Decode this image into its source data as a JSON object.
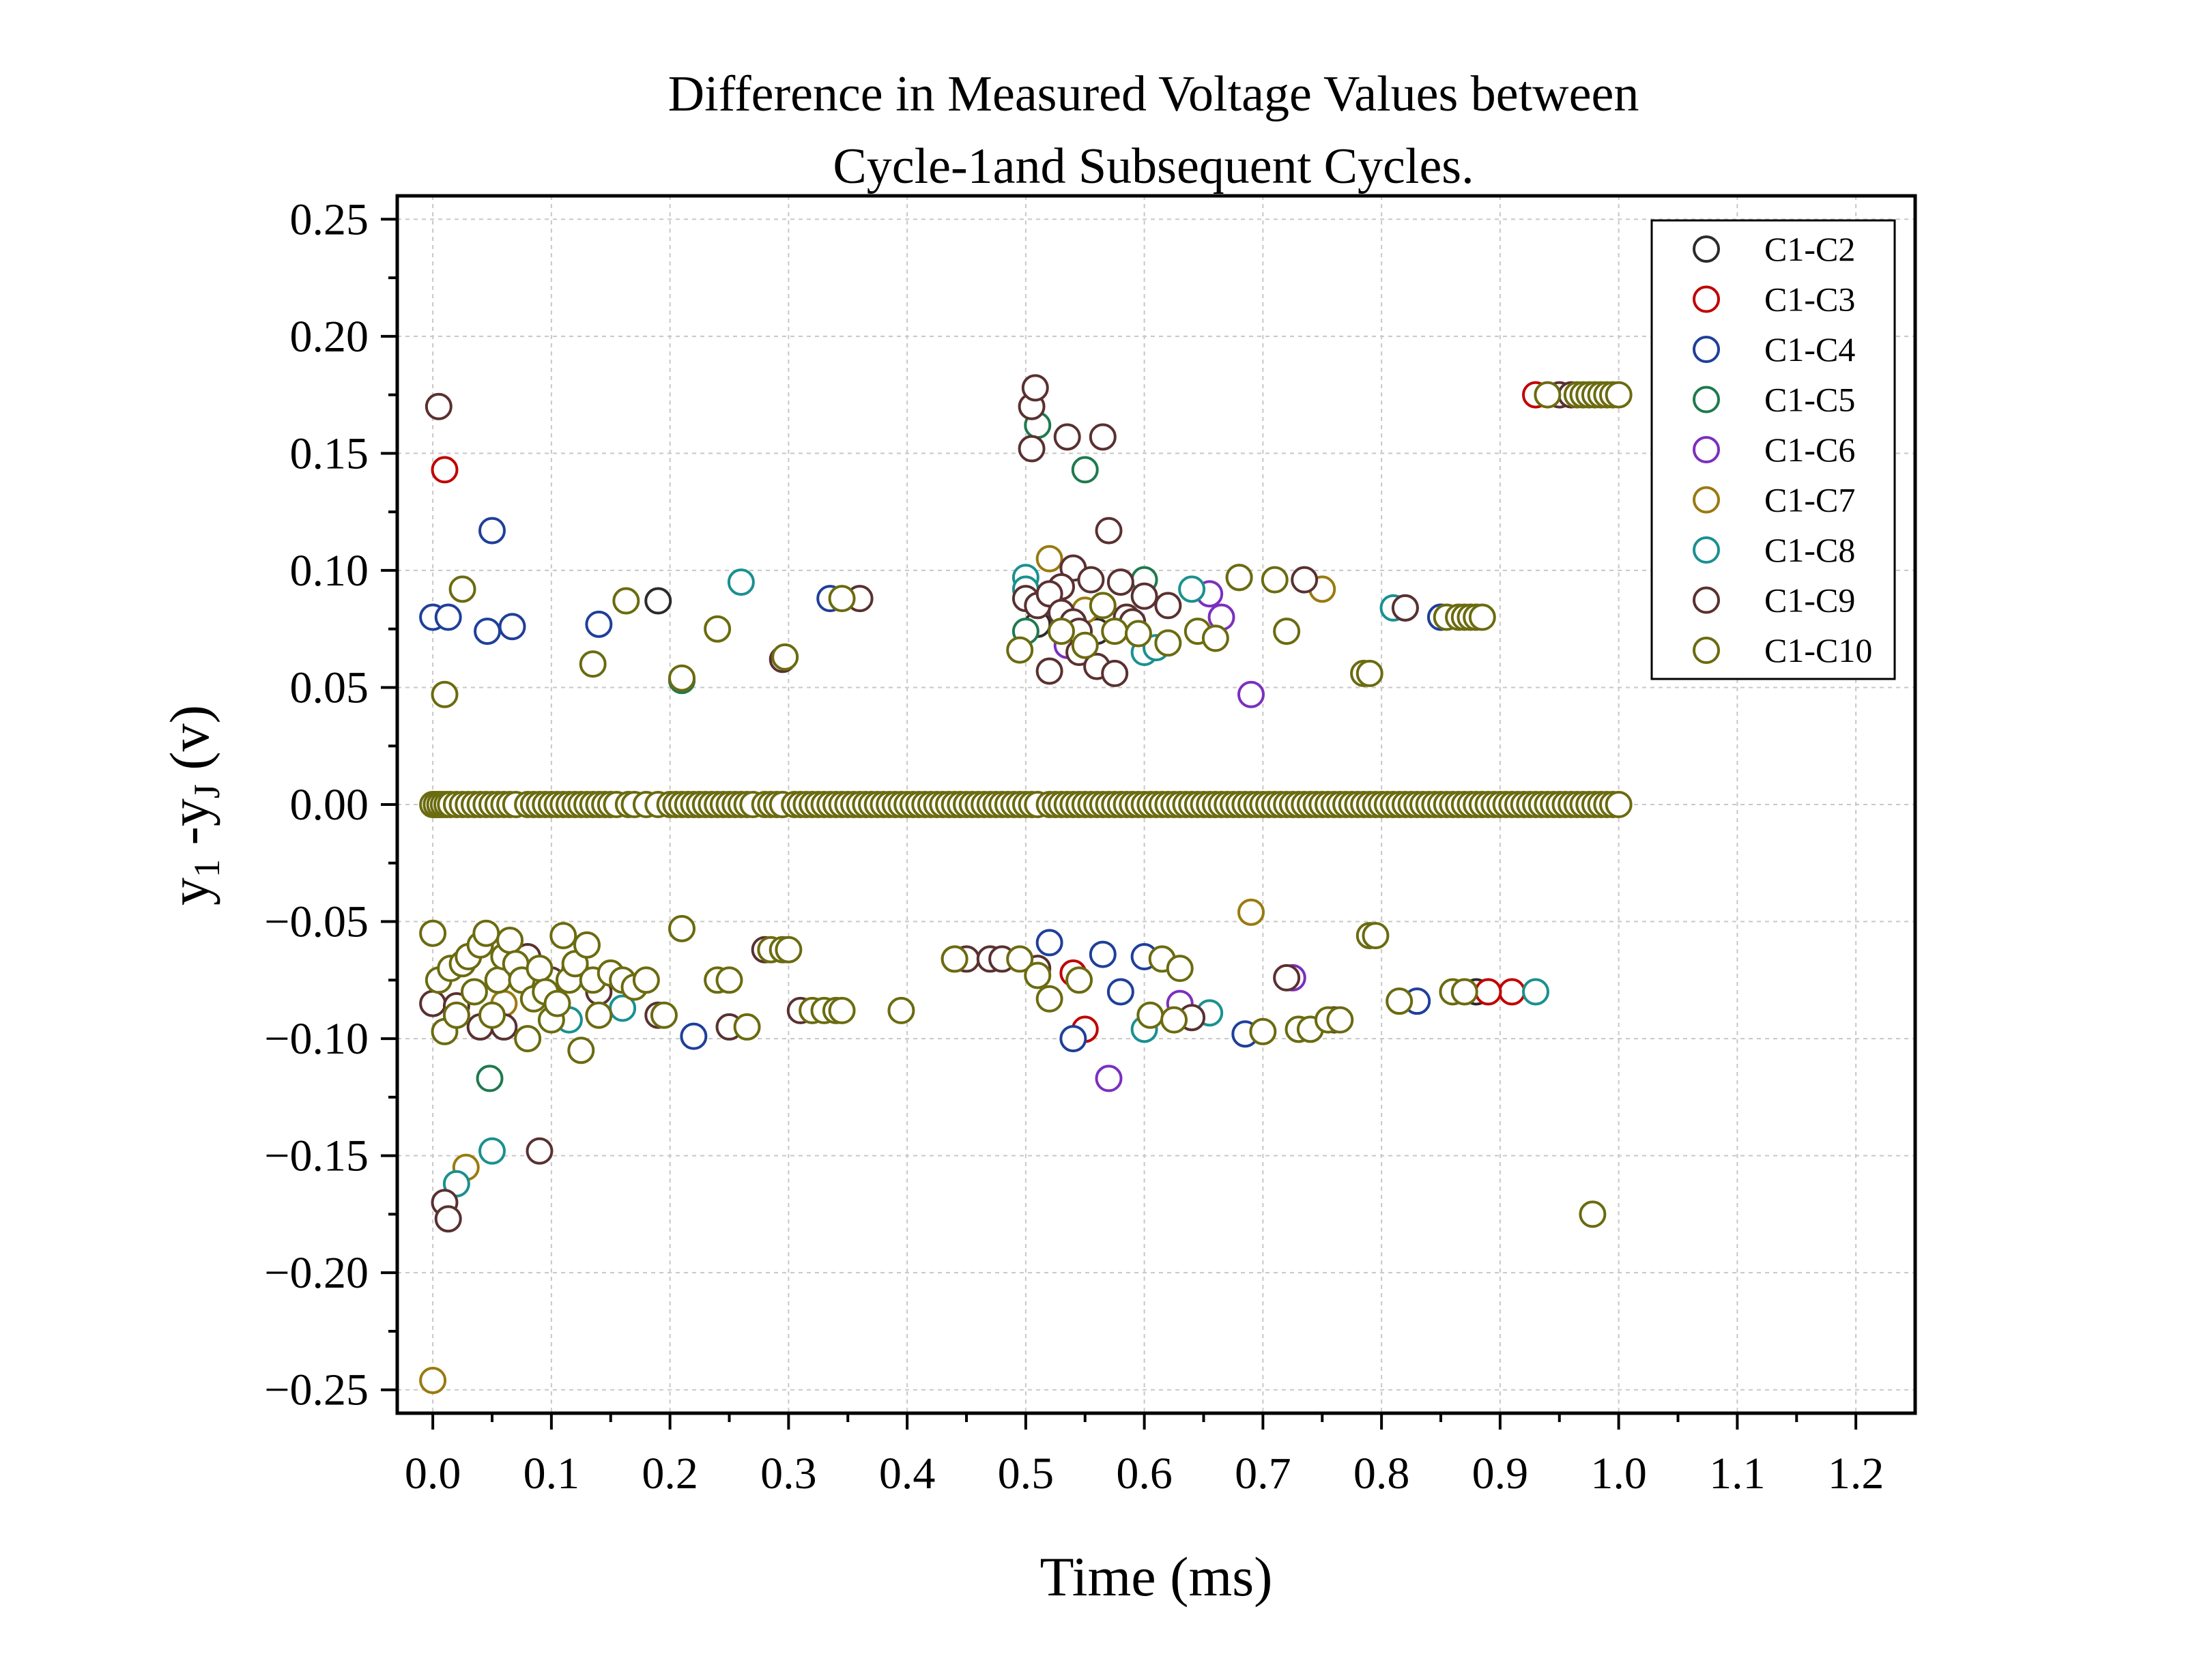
{
  "chart_data": {
    "type": "scatter",
    "title_line1": "Difference in Measured Voltage Values between",
    "title_line2": "Cycle-1and Subsequent Cycles.",
    "xlabel": "Time (ms)",
    "ylabel_main": "y",
    "ylabel_sub1": "1",
    "ylabel_mid": " -y",
    "ylabel_sub2": "J",
    "ylabel_unit": " (v)",
    "xlim": [
      -0.03,
      1.25
    ],
    "ylim": [
      -0.26,
      0.26
    ],
    "x_ticks": [
      0.0,
      0.1,
      0.2,
      0.3,
      0.4,
      0.5,
      0.6,
      0.7,
      0.8,
      0.9,
      1.0,
      1.1,
      1.2
    ],
    "x_tick_labels": [
      "0.0",
      "0.1",
      "0.2",
      "0.3",
      "0.4",
      "0.5",
      "0.6",
      "0.7",
      "0.8",
      "0.9",
      "1.0",
      "1.1",
      "1.2"
    ],
    "y_ticks": [
      -0.25,
      -0.2,
      -0.15,
      -0.1,
      -0.05,
      0.0,
      0.05,
      0.1,
      0.15,
      0.2,
      0.25
    ],
    "y_tick_labels": [
      "−0.25",
      "−0.20",
      "−0.15",
      "−0.10",
      "−0.05",
      "0.00",
      "0.05",
      "0.10",
      "0.15",
      "0.20",
      "0.25"
    ],
    "grid": true,
    "legend_position": "top-right",
    "series": [
      {
        "name": "C1-C2",
        "color": "#2b2b2b",
        "points": [
          [
            0.19,
            0.087
          ],
          [
            0.51,
            0.077
          ],
          [
            0.56,
            0.074
          ],
          [
            0.85,
            0.08
          ],
          [
            0.88,
            -0.08
          ],
          [
            0.21,
            0.053
          ]
        ]
      },
      {
        "name": "C1-C3",
        "color": "#c00000",
        "points": [
          [
            0.01,
            0.143
          ],
          [
            0.55,
            -0.096
          ],
          [
            0.54,
            -0.072
          ],
          [
            0.93,
            0.175
          ],
          [
            0.91,
            -0.08
          ],
          [
            0.89,
            -0.08
          ]
        ]
      },
      {
        "name": "C1-C4",
        "color": "#1f3f99",
        "points": [
          [
            0.0,
            0.08
          ],
          [
            0.013,
            0.08
          ],
          [
            0.05,
            0.117
          ],
          [
            0.046,
            0.074
          ],
          [
            0.067,
            0.076
          ],
          [
            0.14,
            0.077
          ],
          [
            0.335,
            0.088
          ],
          [
            0.52,
            -0.059
          ],
          [
            0.54,
            -0.1
          ],
          [
            0.565,
            -0.064
          ],
          [
            0.58,
            -0.08
          ],
          [
            0.6,
            -0.065
          ],
          [
            0.685,
            -0.098
          ],
          [
            0.22,
            -0.099
          ],
          [
            0.82,
            0.084
          ],
          [
            0.83,
            -0.084
          ],
          [
            0.85,
            0.08
          ]
        ]
      },
      {
        "name": "C1-C5",
        "color": "#1e7a4e",
        "points": [
          [
            0.048,
            -0.117
          ],
          [
            0.51,
            0.162
          ],
          [
            0.55,
            0.143
          ],
          [
            0.6,
            0.096
          ],
          [
            0.68,
            0.097
          ],
          [
            0.21,
            0.053
          ],
          [
            0.03,
            -0.065
          ],
          [
            0.5,
            0.074
          ]
        ]
      },
      {
        "name": "C1-C6",
        "color": "#7b2fbf",
        "points": [
          [
            0.57,
            -0.117
          ],
          [
            0.63,
            -0.085
          ],
          [
            0.665,
            0.08
          ],
          [
            0.655,
            0.09
          ],
          [
            0.69,
            0.047
          ],
          [
            0.725,
            -0.074
          ],
          [
            0.535,
            0.068
          ]
        ]
      },
      {
        "name": "C1-C7",
        "color": "#9a7a10",
        "points": [
          [
            0.0,
            -0.246
          ],
          [
            0.028,
            -0.155
          ],
          [
            0.69,
            -0.046
          ],
          [
            0.52,
            0.105
          ],
          [
            0.75,
            0.092
          ],
          [
            0.44,
            -0.066
          ],
          [
            0.02,
            -0.09
          ],
          [
            0.06,
            -0.085
          ],
          [
            0.55,
            0.083
          ]
        ]
      },
      {
        "name": "C1-C8",
        "color": "#1a9090",
        "points": [
          [
            0.05,
            -0.148
          ],
          [
            0.02,
            -0.162
          ],
          [
            0.26,
            0.095
          ],
          [
            0.5,
            0.097
          ],
          [
            0.64,
            0.092
          ],
          [
            0.655,
            -0.089
          ],
          [
            0.6,
            -0.096
          ],
          [
            0.6,
            0.065
          ],
          [
            0.61,
            0.067
          ],
          [
            0.81,
            0.084
          ],
          [
            0.93,
            -0.08
          ],
          [
            0.115,
            -0.092
          ],
          [
            0.16,
            -0.087
          ],
          [
            0.5,
            0.092
          ]
        ]
      },
      {
        "name": "C1-C9",
        "color": "#5a3030",
        "points": [
          [
            0.005,
            0.17
          ],
          [
            0.505,
            0.17
          ],
          [
            0.508,
            0.178
          ],
          [
            0.505,
            0.152
          ],
          [
            0.535,
            0.157
          ],
          [
            0.565,
            0.157
          ],
          [
            0.57,
            0.117
          ],
          [
            0.54,
            0.101
          ],
          [
            0.58,
            0.095
          ],
          [
            0.53,
            0.093
          ],
          [
            0.555,
            0.096
          ],
          [
            0.585,
            0.08
          ],
          [
            0.59,
            0.078
          ],
          [
            0.52,
            0.057
          ],
          [
            0.545,
            0.065
          ],
          [
            0.56,
            0.059
          ],
          [
            0.575,
            0.056
          ],
          [
            0.01,
            -0.17
          ],
          [
            0.013,
            -0.177
          ],
          [
            0.09,
            -0.148
          ],
          [
            0.36,
            0.088
          ],
          [
            0.295,
            0.062
          ],
          [
            0.5,
            0.088
          ],
          [
            0.51,
            0.085
          ],
          [
            0.52,
            0.09
          ],
          [
            0.53,
            0.082
          ],
          [
            0.54,
            0.078
          ],
          [
            0.545,
            0.074
          ],
          [
            0.62,
            0.085
          ],
          [
            0.6,
            0.089
          ],
          [
            0.735,
            0.096
          ],
          [
            0.95,
            0.175
          ],
          [
            0.96,
            0.175
          ],
          [
            0.45,
            -0.066
          ],
          [
            0.47,
            -0.066
          ],
          [
            0.48,
            -0.066
          ],
          [
            0.51,
            -0.07
          ],
          [
            0.0,
            -0.085
          ],
          [
            0.02,
            -0.086
          ],
          [
            0.04,
            -0.095
          ],
          [
            0.06,
            -0.095
          ],
          [
            0.08,
            -0.065
          ],
          [
            0.1,
            -0.075
          ],
          [
            0.12,
            -0.07
          ],
          [
            0.14,
            -0.08
          ],
          [
            0.19,
            -0.09
          ],
          [
            0.25,
            -0.095
          ],
          [
            0.28,
            -0.062
          ],
          [
            0.31,
            -0.088
          ],
          [
            0.72,
            -0.074
          ],
          [
            0.76,
            -0.092
          ],
          [
            0.64,
            -0.091
          ],
          [
            0.82,
            0.084
          ]
        ]
      },
      {
        "name": "C1-C10",
        "color": "#6b6b10",
        "points": [
          [
            0.01,
            0.047
          ],
          [
            0.025,
            0.092
          ],
          [
            0.135,
            0.06
          ],
          [
            0.163,
            0.087
          ],
          [
            0.21,
            0.054
          ],
          [
            0.24,
            0.075
          ],
          [
            0.345,
            0.088
          ],
          [
            0.297,
            0.063
          ],
          [
            0.495,
            0.066
          ],
          [
            0.53,
            0.074
          ],
          [
            0.55,
            0.068
          ],
          [
            0.565,
            0.085
          ],
          [
            0.575,
            0.074
          ],
          [
            0.595,
            0.073
          ],
          [
            0.62,
            0.069
          ],
          [
            0.645,
            0.074
          ],
          [
            0.66,
            0.071
          ],
          [
            0.68,
            0.097
          ],
          [
            0.71,
            0.096
          ],
          [
            0.72,
            0.074
          ],
          [
            0.785,
            0.056
          ],
          [
            0.79,
            0.056
          ],
          [
            0.855,
            0.08
          ],
          [
            0.865,
            0.08
          ],
          [
            0.87,
            0.08
          ],
          [
            0.875,
            0.08
          ],
          [
            0.88,
            0.08
          ],
          [
            0.885,
            0.08
          ],
          [
            0.94,
            0.175
          ],
          [
            0.965,
            0.175
          ],
          [
            0.97,
            0.175
          ],
          [
            0.975,
            0.175
          ],
          [
            0.98,
            0.175
          ],
          [
            0.985,
            0.175
          ],
          [
            0.99,
            0.175
          ],
          [
            0.995,
            0.175
          ],
          [
            1.0,
            0.175
          ],
          [
            0.978,
            -0.175
          ],
          [
            0.0,
            -0.055
          ],
          [
            0.005,
            -0.075
          ],
          [
            0.01,
            -0.097
          ],
          [
            0.015,
            -0.07
          ],
          [
            0.02,
            -0.09
          ],
          [
            0.025,
            -0.068
          ],
          [
            0.03,
            -0.065
          ],
          [
            0.035,
            -0.08
          ],
          [
            0.04,
            -0.06
          ],
          [
            0.045,
            -0.055
          ],
          [
            0.05,
            -0.09
          ],
          [
            0.055,
            -0.075
          ],
          [
            0.06,
            -0.065
          ],
          [
            0.065,
            -0.058
          ],
          [
            0.07,
            -0.068
          ],
          [
            0.075,
            -0.075
          ],
          [
            0.08,
            -0.1
          ],
          [
            0.085,
            -0.083
          ],
          [
            0.09,
            -0.07
          ],
          [
            0.095,
            -0.08
          ],
          [
            0.1,
            -0.092
          ],
          [
            0.105,
            -0.085
          ],
          [
            0.11,
            -0.056
          ],
          [
            0.115,
            -0.075
          ],
          [
            0.12,
            -0.068
          ],
          [
            0.125,
            -0.105
          ],
          [
            0.13,
            -0.06
          ],
          [
            0.135,
            -0.075
          ],
          [
            0.14,
            -0.09
          ],
          [
            0.15,
            -0.072
          ],
          [
            0.16,
            -0.075
          ],
          [
            0.17,
            -0.078
          ],
          [
            0.18,
            -0.075
          ],
          [
            0.195,
            -0.09
          ],
          [
            0.21,
            -0.053
          ],
          [
            0.24,
            -0.075
          ],
          [
            0.25,
            -0.075
          ],
          [
            0.265,
            -0.095
          ],
          [
            0.285,
            -0.062
          ],
          [
            0.295,
            -0.062
          ],
          [
            0.3,
            -0.062
          ],
          [
            0.32,
            -0.088
          ],
          [
            0.33,
            -0.088
          ],
          [
            0.34,
            -0.088
          ],
          [
            0.345,
            -0.088
          ],
          [
            0.395,
            -0.088
          ],
          [
            0.44,
            -0.066
          ],
          [
            0.495,
            -0.066
          ],
          [
            0.51,
            -0.073
          ],
          [
            0.52,
            -0.083
          ],
          [
            0.545,
            -0.075
          ],
          [
            0.605,
            -0.09
          ],
          [
            0.615,
            -0.066
          ],
          [
            0.625,
            -0.092
          ],
          [
            0.63,
            -0.07
          ],
          [
            0.7,
            -0.097
          ],
          [
            0.73,
            -0.096
          ],
          [
            0.74,
            -0.096
          ],
          [
            0.755,
            -0.092
          ],
          [
            0.765,
            -0.092
          ],
          [
            0.79,
            -0.056
          ],
          [
            0.795,
            -0.056
          ],
          [
            0.815,
            -0.084
          ],
          [
            0.86,
            -0.08
          ],
          [
            0.87,
            -0.08
          ]
        ]
      }
    ],
    "baseline_series_name": "C1-C10",
    "baseline_x": [
      0.0,
      0.003,
      0.006,
      0.009,
      0.012,
      0.015,
      0.02,
      0.025,
      0.03,
      0.035,
      0.04,
      0.045,
      0.05,
      0.055,
      0.06,
      0.065,
      0.07,
      0.08,
      0.085,
      0.09,
      0.095,
      0.1,
      0.105,
      0.11,
      0.115,
      0.12,
      0.125,
      0.13,
      0.135,
      0.14,
      0.145,
      0.15,
      0.155,
      0.165,
      0.17,
      0.18,
      0.19,
      0.2,
      0.205,
      0.21,
      0.215,
      0.22,
      0.225,
      0.23,
      0.235,
      0.24,
      0.245,
      0.25,
      0.255,
      0.26,
      0.265,
      0.27,
      0.28,
      0.285,
      0.29,
      0.295,
      0.305,
      0.31,
      0.315,
      0.32,
      0.325,
      0.33,
      0.335,
      0.34,
      0.345,
      0.35,
      0.355,
      0.36,
      0.365,
      0.37,
      0.375,
      0.38,
      0.385,
      0.39,
      0.395,
      0.4,
      0.405,
      0.41,
      0.415,
      0.42,
      0.425,
      0.43,
      0.435,
      0.44,
      0.445,
      0.45,
      0.455,
      0.46,
      0.465,
      0.47,
      0.475,
      0.48,
      0.485,
      0.49,
      0.495,
      0.5,
      0.505,
      0.51,
      0.52,
      0.525,
      0.53,
      0.535,
      0.54,
      0.545,
      0.55,
      0.555,
      0.56,
      0.565,
      0.57,
      0.575,
      0.58,
      0.585,
      0.59,
      0.595,
      0.6,
      0.605,
      0.61,
      0.615,
      0.62,
      0.625,
      0.63,
      0.635,
      0.64,
      0.645,
      0.65,
      0.655,
      0.66,
      0.665,
      0.67,
      0.675,
      0.68,
      0.685,
      0.69,
      0.695,
      0.7,
      0.705,
      0.71,
      0.715,
      0.72,
      0.725,
      0.73,
      0.735,
      0.74,
      0.745,
      0.75,
      0.755,
      0.76,
      0.765,
      0.77,
      0.775,
      0.78,
      0.785,
      0.79,
      0.795,
      0.8,
      0.805,
      0.81,
      0.815,
      0.82,
      0.825,
      0.83,
      0.835,
      0.84,
      0.845,
      0.85,
      0.855,
      0.86,
      0.865,
      0.87,
      0.875,
      0.88,
      0.885,
      0.89,
      0.895,
      0.9,
      0.905,
      0.91,
      0.915,
      0.92,
      0.925,
      0.93,
      0.935,
      0.94,
      0.945,
      0.95,
      0.955,
      0.96,
      0.965,
      0.97,
      0.975,
      0.98,
      0.985,
      0.99,
      0.995,
      1.0
    ],
    "baseline_y": 0.0
  }
}
